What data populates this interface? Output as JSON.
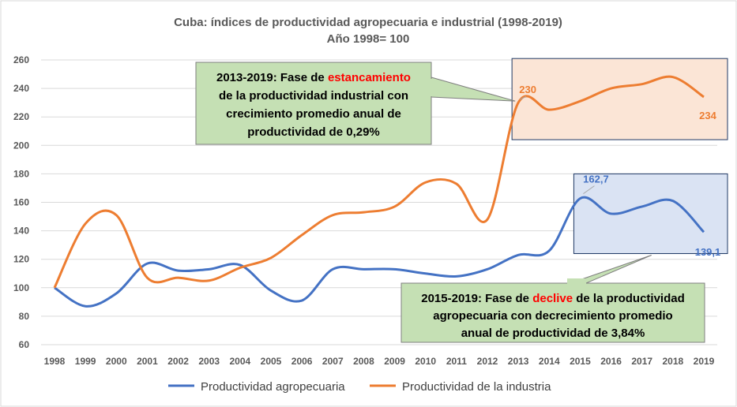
{
  "chart_data": {
    "type": "line",
    "title": "Cuba: índices de productividad agropecuaria e industrial (1998-2019)",
    "subtitle": "Año 1998= 100",
    "xlabel": "",
    "ylabel": "",
    "ylim": [
      60,
      260
    ],
    "yticks": [
      "60",
      "80",
      "100",
      "120",
      "140",
      "160",
      "180",
      "200",
      "220",
      "240",
      "260"
    ],
    "grid": true,
    "legend_position": "bottom",
    "x": [
      "1998",
      "1999",
      "2000",
      "2001",
      "2002",
      "2003",
      "2004",
      "2005",
      "2006",
      "2007",
      "2008",
      "2009",
      "2010",
      "2011",
      "2012",
      "2013",
      "2014",
      "2015",
      "2016",
      "2017",
      "2018",
      "2019"
    ],
    "series": [
      {
        "name": "Productividad agropecuaria",
        "color": "#4472c4",
        "values": [
          100,
          87,
          96,
          117,
          112,
          113,
          116,
          98,
          91,
          113,
          113,
          113,
          110,
          108,
          113,
          123,
          126,
          162.7,
          152,
          157,
          161,
          139.1
        ]
      },
      {
        "name": "Productividad de la industria",
        "color": "#ed7d31",
        "values": [
          100,
          145,
          151,
          107,
          107,
          105,
          114,
          121,
          137,
          151,
          153,
          157,
          174,
          173,
          148,
          230,
          225,
          231,
          240,
          243,
          248,
          234
        ]
      }
    ],
    "point_labels": [
      {
        "series": 1,
        "index": 15,
        "text": "230"
      },
      {
        "series": 1,
        "index": 21,
        "text": "234"
      },
      {
        "series": 0,
        "index": 17,
        "text": "162,7"
      },
      {
        "series": 0,
        "index": 21,
        "text": "139,1"
      }
    ],
    "annotations": [
      {
        "lines": [
          [
            {
              "t": "2013-2019: Fase de ",
              "red": false
            },
            {
              "t": "estancamiento",
              "red": true
            }
          ],
          [
            {
              "t": "de la productividad industrial con",
              "red": false
            }
          ],
          [
            {
              "t": "crecimiento promedio anual de",
              "red": false
            }
          ],
          [
            {
              "t": "productividad de 0,29%",
              "red": false
            }
          ]
        ]
      },
      {
        "lines": [
          [
            {
              "t": "2015-2019: Fase de ",
              "red": false
            },
            {
              "t": "declive",
              "red": true
            },
            {
              "t": " de la productividad",
              "red": false
            }
          ],
          [
            {
              "t": "agropecuaria  con decrecimiento promedio",
              "red": false
            }
          ],
          [
            {
              "t": "anual de productividad de 3,84%",
              "red": false
            }
          ]
        ]
      }
    ],
    "colors": {
      "highlight_industry_fill": "#fbe5d6",
      "highlight_agro_fill": "#dae3f3",
      "callout_fill": "#c5e0b4",
      "emphasis_red": "#ff0000"
    }
  }
}
